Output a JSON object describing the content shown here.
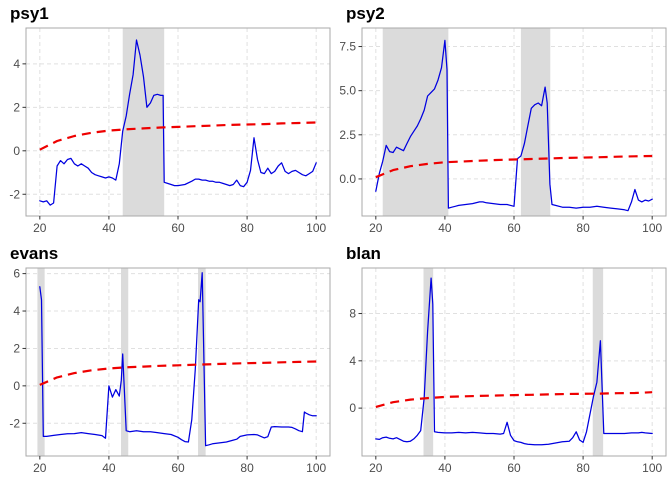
{
  "style": {
    "background": "#FFFFFF",
    "panel_background": "#FFFFFF",
    "statistic_color": "#0000E0",
    "critical_color": "#EE0000",
    "band_color": "#DBDBDB",
    "grid_color": "#E0E0E0",
    "border_color": "#A9A9A9",
    "tick_mark_color": "#333333",
    "tick_label_color": "#4D4D4D",
    "title_color": "#000000"
  },
  "chart_data": [
    {
      "title": "psy1",
      "type": "line",
      "xlabel": "",
      "ylabel": "",
      "legend": "none",
      "grid": true,
      "xlim": [
        16,
        104
      ],
      "ylim": [
        -3.0,
        5.65
      ],
      "xticks": [
        20,
        40,
        60,
        80,
        100
      ],
      "xtick_labels": [
        "20",
        "40",
        "60",
        "80",
        "100"
      ],
      "yticks": [
        -2,
        0,
        2,
        4
      ],
      "ytick_labels": [
        "-2",
        "0",
        "2",
        "4"
      ],
      "bands": [
        [
          44,
          56
        ]
      ],
      "series": [
        {
          "role": "statistic",
          "color": "#0000E0",
          "dash": false,
          "x": [
            20,
            21,
            22,
            23,
            24,
            25,
            26,
            27,
            28,
            29,
            30,
            31,
            32,
            33,
            34,
            35,
            36,
            37,
            38,
            39,
            40,
            41,
            42,
            43,
            44,
            45,
            46,
            47,
            48,
            49,
            50,
            51,
            52,
            53,
            54,
            55,
            55.7,
            56,
            57,
            58,
            59,
            60,
            62,
            64,
            65,
            66,
            67,
            68,
            69,
            70,
            71,
            72,
            73,
            74,
            75,
            76,
            77,
            78,
            79,
            80,
            81,
            82,
            83,
            84,
            85,
            86,
            87,
            88,
            89,
            90,
            91,
            92,
            93,
            94,
            95,
            96,
            97,
            98,
            99,
            100
          ],
          "y": [
            -2.3,
            -2.35,
            -2.3,
            -2.5,
            -2.4,
            -0.7,
            -0.45,
            -0.6,
            -0.4,
            -0.35,
            -0.6,
            -0.7,
            -0.6,
            -0.7,
            -0.8,
            -1.0,
            -1.1,
            -1.15,
            -1.2,
            -1.25,
            -1.2,
            -1.25,
            -1.35,
            -0.6,
            0.9,
            1.6,
            2.6,
            3.5,
            5.1,
            4.4,
            3.4,
            2.0,
            2.2,
            2.55,
            2.6,
            2.55,
            2.55,
            -1.45,
            -1.5,
            -1.55,
            -1.6,
            -1.6,
            -1.55,
            -1.4,
            -1.3,
            -1.3,
            -1.35,
            -1.35,
            -1.4,
            -1.4,
            -1.45,
            -1.45,
            -1.5,
            -1.55,
            -1.6,
            -1.55,
            -1.35,
            -1.6,
            -1.65,
            -1.45,
            -0.9,
            0.6,
            -0.4,
            -1.0,
            -1.05,
            -0.8,
            -1.05,
            -0.95,
            -0.7,
            -0.55,
            -0.95,
            -1.05,
            -0.95,
            -0.9,
            -1.0,
            -1.1,
            -1.15,
            -1.05,
            -0.95,
            -0.55
          ]
        },
        {
          "role": "critical-values",
          "color": "#EE0000",
          "dash": true,
          "x": [
            20,
            25,
            30,
            35,
            40,
            45,
            50,
            55,
            60,
            65,
            70,
            75,
            80,
            85,
            90,
            95,
            100
          ],
          "y": [
            0.05,
            0.45,
            0.68,
            0.83,
            0.93,
            0.99,
            1.03,
            1.07,
            1.1,
            1.13,
            1.16,
            1.19,
            1.21,
            1.23,
            1.26,
            1.28,
            1.3
          ]
        }
      ]
    },
    {
      "title": "psy2",
      "type": "line",
      "xlabel": "",
      "ylabel": "",
      "legend": "none",
      "grid": true,
      "xlim": [
        16,
        104
      ],
      "ylim": [
        -2.1,
        8.55
      ],
      "xticks": [
        20,
        40,
        60,
        80,
        100
      ],
      "xtick_labels": [
        "20",
        "40",
        "60",
        "80",
        "100"
      ],
      "yticks": [
        0,
        2.5,
        5,
        7.5
      ],
      "ytick_labels": [
        "0.0",
        "2.5",
        "5.0",
        "7.5"
      ],
      "bands": [
        [
          22,
          41
        ],
        [
          62,
          70.5
        ]
      ],
      "series": [
        {
          "role": "statistic",
          "color": "#0000E0",
          "dash": false,
          "x": [
            20,
            21,
            22,
            23,
            24,
            25,
            26,
            27,
            28,
            29,
            30,
            31,
            32,
            33,
            34,
            35,
            36,
            37,
            38,
            39,
            40,
            40.6,
            41,
            42,
            43,
            44,
            46,
            48,
            50,
            51,
            52,
            54,
            56,
            58,
            60,
            61,
            62,
            63,
            64,
            65,
            66,
            67,
            68,
            69,
            69.6,
            70.4,
            71,
            72,
            74,
            76,
            78,
            80,
            82,
            84,
            86,
            88,
            90,
            92,
            93,
            94,
            95,
            96,
            97,
            98,
            99,
            100
          ],
          "y": [
            -0.7,
            0.3,
            1.0,
            1.9,
            1.55,
            1.5,
            1.8,
            1.7,
            1.6,
            2.0,
            2.4,
            2.7,
            3.0,
            3.4,
            3.9,
            4.7,
            4.9,
            5.1,
            5.6,
            6.3,
            7.85,
            6.2,
            -1.65,
            -1.6,
            -1.55,
            -1.5,
            -1.45,
            -1.4,
            -1.3,
            -1.3,
            -1.35,
            -1.4,
            -1.45,
            -1.45,
            -1.55,
            1.15,
            1.3,
            2.0,
            3.0,
            4.0,
            4.2,
            4.3,
            4.15,
            5.2,
            4.3,
            -0.3,
            -1.45,
            -1.5,
            -1.6,
            -1.6,
            -1.65,
            -1.6,
            -1.6,
            -1.55,
            -1.6,
            -1.65,
            -1.7,
            -1.75,
            -1.8,
            -1.3,
            -0.6,
            -1.2,
            -1.3,
            -1.2,
            -1.25,
            -1.15
          ]
        },
        {
          "role": "critical-values",
          "color": "#EE0000",
          "dash": true,
          "x": [
            20,
            25,
            30,
            35,
            40,
            45,
            50,
            55,
            60,
            65,
            70,
            75,
            80,
            85,
            90,
            95,
            100
          ],
          "y": [
            0.1,
            0.5,
            0.72,
            0.85,
            0.95,
            0.99,
            1.03,
            1.07,
            1.1,
            1.13,
            1.16,
            1.19,
            1.21,
            1.23,
            1.26,
            1.28,
            1.3
          ]
        }
      ]
    },
    {
      "title": "evans",
      "type": "line",
      "xlabel": "",
      "ylabel": "",
      "legend": "none",
      "grid": true,
      "xlim": [
        16,
        104
      ],
      "ylim": [
        -3.75,
        6.3
      ],
      "xticks": [
        20,
        40,
        60,
        80,
        100
      ],
      "xtick_labels": [
        "20",
        "40",
        "60",
        "80",
        "100"
      ],
      "yticks": [
        -2,
        0,
        2,
        4,
        6
      ],
      "ytick_labels": [
        "-2",
        "0",
        "2",
        "4",
        "6"
      ],
      "bands": [
        [
          19.3,
          21.4
        ],
        [
          43.5,
          45.6
        ],
        [
          65.8,
          68
        ]
      ],
      "series": [
        {
          "role": "statistic",
          "color": "#0000E0",
          "dash": false,
          "x": [
            20,
            20.5,
            21,
            22,
            24,
            26,
            28,
            30,
            32,
            34,
            36,
            38,
            39,
            40,
            41,
            42,
            43,
            43.6,
            44,
            45,
            46,
            48,
            50,
            52,
            54,
            56,
            58,
            60,
            61,
            62,
            63,
            64,
            65,
            66,
            66.4,
            67,
            68,
            69,
            70,
            72,
            74,
            76,
            77,
            78,
            80,
            82,
            83,
            84,
            85,
            86,
            87,
            88,
            90,
            92,
            93,
            94,
            95,
            96,
            96.6,
            97,
            98,
            99,
            100
          ],
          "y": [
            5.3,
            4.6,
            -2.7,
            -2.7,
            -2.65,
            -2.6,
            -2.56,
            -2.55,
            -2.5,
            -2.55,
            -2.6,
            -2.66,
            -2.8,
            0.0,
            -0.6,
            -0.2,
            -0.55,
            0.3,
            1.7,
            -2.4,
            -2.45,
            -2.4,
            -2.45,
            -2.45,
            -2.5,
            -2.55,
            -2.6,
            -2.75,
            -2.88,
            -2.98,
            -3.0,
            -1.8,
            0.9,
            4.6,
            4.5,
            6.05,
            -3.2,
            -3.15,
            -3.1,
            -3.05,
            -3.0,
            -2.9,
            -2.85,
            -2.7,
            -2.62,
            -2.6,
            -2.62,
            -2.7,
            -2.78,
            -2.72,
            -2.2,
            -2.18,
            -2.2,
            -2.2,
            -2.22,
            -2.3,
            -2.4,
            -2.45,
            -1.4,
            -1.45,
            -1.55,
            -1.6,
            -1.6
          ]
        },
        {
          "role": "critical-values",
          "color": "#EE0000",
          "dash": true,
          "x": [
            20,
            25,
            30,
            35,
            40,
            45,
            50,
            55,
            60,
            65,
            70,
            75,
            80,
            85,
            90,
            95,
            100
          ],
          "y": [
            0.05,
            0.45,
            0.68,
            0.83,
            0.93,
            0.99,
            1.03,
            1.07,
            1.1,
            1.13,
            1.16,
            1.19,
            1.21,
            1.23,
            1.26,
            1.28,
            1.3
          ]
        }
      ]
    },
    {
      "title": "blan",
      "type": "line",
      "xlabel": "",
      "ylabel": "",
      "legend": "none",
      "grid": true,
      "xlim": [
        16,
        104
      ],
      "ylim": [
        -4.05,
        11.85
      ],
      "xticks": [
        20,
        40,
        60,
        80,
        100
      ],
      "xtick_labels": [
        "20",
        "40",
        "60",
        "80",
        "100"
      ],
      "yticks": [
        0,
        4,
        8
      ],
      "ytick_labels": [
        "0",
        "4",
        "8"
      ],
      "bands": [
        [
          33.8,
          36.6
        ],
        [
          82.8,
          85.8
        ]
      ],
      "series": [
        {
          "role": "statistic",
          "color": "#0000E0",
          "dash": false,
          "x": [
            20,
            21,
            22,
            23,
            24,
            25,
            26,
            27,
            28,
            29,
            30,
            31,
            32,
            33,
            34,
            35,
            36,
            36.5,
            37,
            38,
            40,
            42,
            44,
            46,
            48,
            50,
            52,
            54,
            56,
            57,
            58,
            59,
            60,
            61,
            62,
            63,
            64,
            66,
            68,
            70,
            72,
            74,
            76,
            77,
            78,
            79,
            80,
            81,
            82,
            83,
            84,
            85,
            86,
            87,
            88,
            90,
            92,
            94,
            96,
            97,
            98,
            100
          ],
          "y": [
            -2.6,
            -2.65,
            -2.5,
            -2.45,
            -2.55,
            -2.6,
            -2.5,
            -2.65,
            -2.8,
            -2.85,
            -2.8,
            -2.6,
            -2.3,
            -1.9,
            0.9,
            6.5,
            11.0,
            8.8,
            -2.0,
            -2.05,
            -2.1,
            -2.1,
            -2.05,
            -2.1,
            -2.05,
            -2.1,
            -2.15,
            -2.15,
            -2.2,
            -2.15,
            -1.2,
            -2.3,
            -2.75,
            -2.85,
            -2.9,
            -3.0,
            -3.05,
            -3.1,
            -3.1,
            -3.05,
            -2.95,
            -2.85,
            -2.8,
            -2.5,
            -2.0,
            -2.7,
            -2.9,
            -2.0,
            -0.5,
            1.0,
            2.2,
            5.7,
            -2.15,
            -2.15,
            -2.15,
            -2.15,
            -2.15,
            -2.1,
            -2.1,
            -2.05,
            -2.1,
            -2.15
          ]
        },
        {
          "role": "critical-values",
          "color": "#EE0000",
          "dash": true,
          "x": [
            20,
            25,
            30,
            35,
            40,
            45,
            50,
            55,
            60,
            65,
            70,
            75,
            80,
            85,
            90,
            95,
            100
          ],
          "y": [
            0.1,
            0.5,
            0.72,
            0.85,
            0.95,
            0.99,
            1.03,
            1.07,
            1.1,
            1.13,
            1.16,
            1.19,
            1.21,
            1.23,
            1.26,
            1.28,
            1.35
          ]
        }
      ]
    }
  ]
}
